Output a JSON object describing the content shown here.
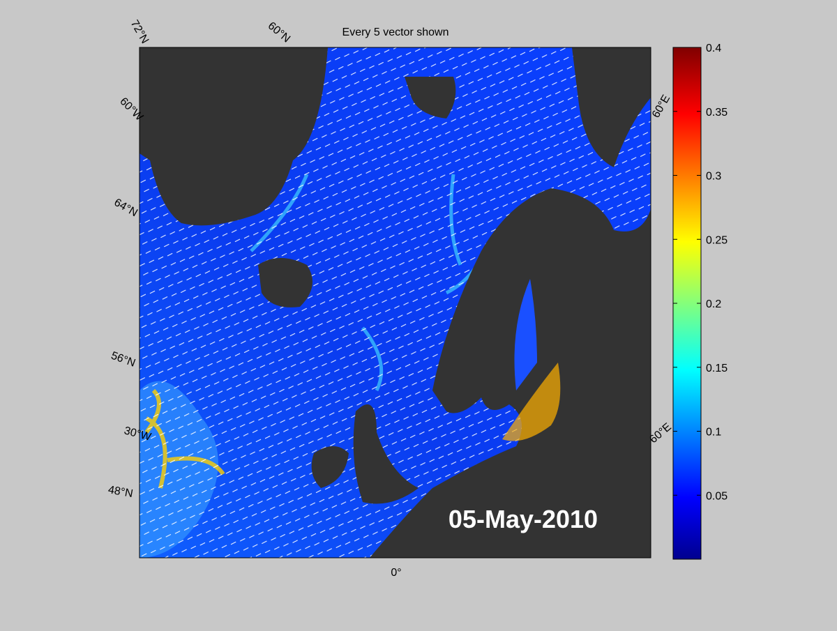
{
  "title": "Every 5 vector shown",
  "date_label": "05-May-2010",
  "graticule_labels": [
    "72°N",
    "60°N",
    "60°W",
    "64°N",
    "56°N",
    "30°W",
    "48°N",
    "0°",
    "60°E",
    "60°E"
  ],
  "colorbar": {
    "lim": [
      0,
      0.4
    ],
    "ticks": [
      0.05,
      0.1,
      0.15,
      0.2,
      0.25,
      0.3,
      0.35,
      0.4
    ]
  }
}
